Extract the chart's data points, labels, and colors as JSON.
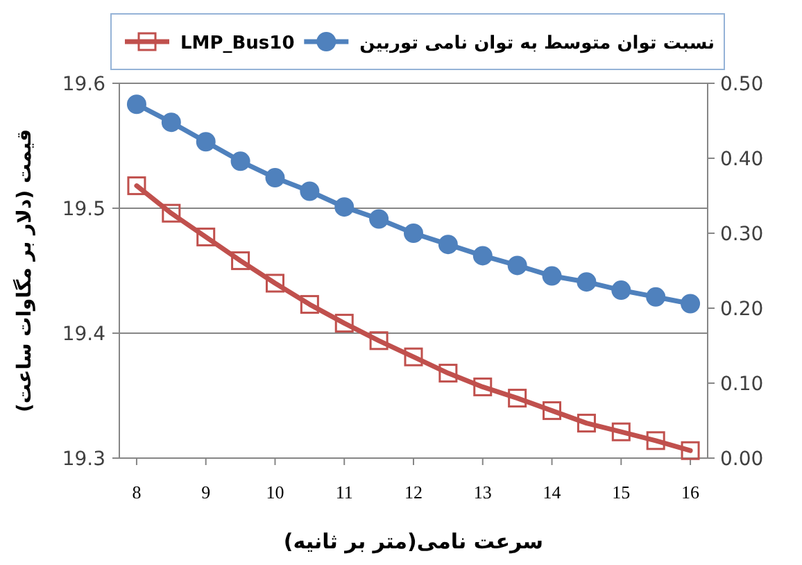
{
  "chart_data": {
    "type": "line",
    "xlabel": "سرعت نامی(متر بر ثانیه)",
    "ylabel": "قیمت (دلار بر مگاوات ساعت)",
    "x": [
      8,
      8.5,
      9,
      9.5,
      10,
      10.5,
      11,
      11.5,
      12,
      12.5,
      13,
      13.5,
      14,
      14.5,
      15,
      15.5,
      16
    ],
    "xlim": [
      7.75,
      16.25
    ],
    "xticks": [
      8,
      9,
      10,
      11,
      12,
      13,
      14,
      15,
      16
    ],
    "ylim": [
      19.3,
      19.6
    ],
    "yticks": [
      {
        "value": 19.3,
        "label": "19.3"
      },
      {
        "value": 19.4,
        "label": "19.4"
      },
      {
        "value": 19.5,
        "label": "19.5"
      },
      {
        "value": 19.6,
        "label": "19.6"
      }
    ],
    "y2lim": [
      0,
      0.5
    ],
    "y2ticks": [
      {
        "value": 0,
        "label": "0.00"
      },
      {
        "value": 0.1,
        "label": "0.10"
      },
      {
        "value": 0.2,
        "label": "0.20"
      },
      {
        "value": 0.3,
        "label": "0.30"
      },
      {
        "value": 0.4,
        "label": "0.40"
      },
      {
        "value": 0.5,
        "label": "0.50"
      }
    ],
    "grid": "y",
    "legend": "top",
    "series": [
      {
        "name": "LMP_Bus10",
        "color": "#c0504d",
        "marker": "square",
        "values": [
          19.518,
          19.496,
          19.477,
          19.458,
          19.44,
          19.423,
          19.408,
          19.394,
          19.381,
          19.368,
          19.357,
          19.348,
          19.338,
          19.328,
          19.321,
          19.314,
          19.306
        ]
      },
      {
        "name": "نسبت توان متوسط به توان نامی توربین",
        "color": "#4f81bd",
        "marker": "circle",
        "axis": "y2",
        "values": [
          0.472,
          0.448,
          0.422,
          0.396,
          0.374,
          0.356,
          0.335,
          0.319,
          0.3,
          0.285,
          0.27,
          0.257,
          0.243,
          0.235,
          0.224,
          0.215,
          0.206
        ]
      }
    ]
  }
}
